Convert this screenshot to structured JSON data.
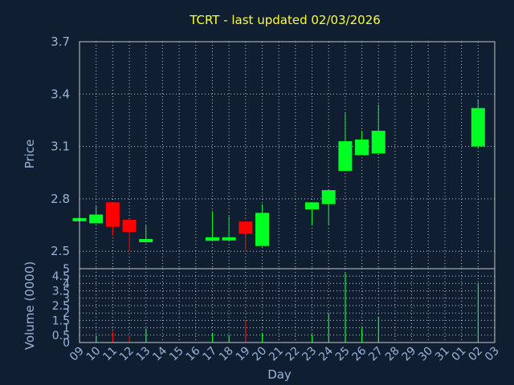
{
  "colors": {
    "background": "#0f1e30",
    "plot_border": "#c8c8c8",
    "grid": "#c8c8c8",
    "up": "#00ff22",
    "down": "#ff0000",
    "title": "#ffff33",
    "text": "#9bb3d9"
  },
  "chart_data": {
    "type": "candlestick",
    "title": "TCRT - last updated 02/03/2026",
    "xlabel": "Day",
    "price_panel": {
      "ylabel": "Price",
      "ylim": [
        2.4,
        3.7
      ],
      "yticks": [
        "2.5",
        "2.8",
        "3.1",
        "3.4",
        "3.7"
      ]
    },
    "volume_panel": {
      "ylabel": "Volume (0000)",
      "ylim": [
        0,
        5
      ],
      "yticks": [
        "0",
        "0.5",
        "1",
        "1.5",
        "2",
        "2.5",
        "3",
        "3.5",
        "4",
        "4.5",
        "5"
      ]
    },
    "x_tick_labels": [
      "09",
      "10",
      "11",
      "12",
      "13",
      "14",
      "15",
      "16",
      "17",
      "18",
      "19",
      "20",
      "21",
      "22",
      "23",
      "24",
      "25",
      "26",
      "27",
      "28",
      "29",
      "30",
      "31",
      "01",
      "02",
      "03"
    ],
    "grid": true,
    "candles": [
      {
        "day": "09",
        "open": 2.69,
        "high": 2.69,
        "low": 2.69,
        "close": 2.69,
        "volume": 0.1
      },
      {
        "day": "10",
        "open": 2.66,
        "high": 2.76,
        "low": 2.66,
        "close": 2.71,
        "volume": 0.45
      },
      {
        "day": "11",
        "open": 2.78,
        "high": 2.78,
        "low": 2.59,
        "close": 2.64,
        "volume": 0.75
      },
      {
        "day": "12",
        "open": 2.68,
        "high": 2.68,
        "low": 2.5,
        "close": 2.61,
        "volume": 0.45
      },
      {
        "day": "13",
        "open": 2.56,
        "high": 2.65,
        "low": 2.55,
        "close": 2.57,
        "volume": 0.95
      },
      {
        "day": "17",
        "open": 2.56,
        "high": 2.73,
        "low": 2.56,
        "close": 2.58,
        "volume": 0.6
      },
      {
        "day": "18",
        "open": 2.57,
        "high": 2.7,
        "low": 2.57,
        "close": 2.58,
        "volume": 0.5
      },
      {
        "day": "19",
        "open": 2.67,
        "high": 2.67,
        "low": 2.5,
        "close": 2.6,
        "volume": 1.5
      },
      {
        "day": "20",
        "open": 2.53,
        "high": 2.77,
        "low": 2.53,
        "close": 2.72,
        "volume": 0.65
      },
      {
        "day": "23",
        "open": 2.74,
        "high": 2.78,
        "low": 2.65,
        "close": 2.78,
        "volume": 0.55
      },
      {
        "day": "24",
        "open": 2.77,
        "high": 2.85,
        "low": 2.65,
        "close": 2.85,
        "volume": 2.0
      },
      {
        "day": "25",
        "open": 2.96,
        "high": 3.29,
        "low": 2.96,
        "close": 3.13,
        "volume": 4.7
      },
      {
        "day": "26",
        "open": 3.05,
        "high": 3.19,
        "low": 3.05,
        "close": 3.14,
        "volume": 1.0
      },
      {
        "day": "27",
        "open": 3.06,
        "high": 3.34,
        "low": 3.06,
        "close": 3.19,
        "volume": 1.75
      },
      {
        "day": "02",
        "open": 3.1,
        "high": 3.37,
        "low": 3.09,
        "close": 3.32,
        "volume": 4.0
      }
    ]
  }
}
